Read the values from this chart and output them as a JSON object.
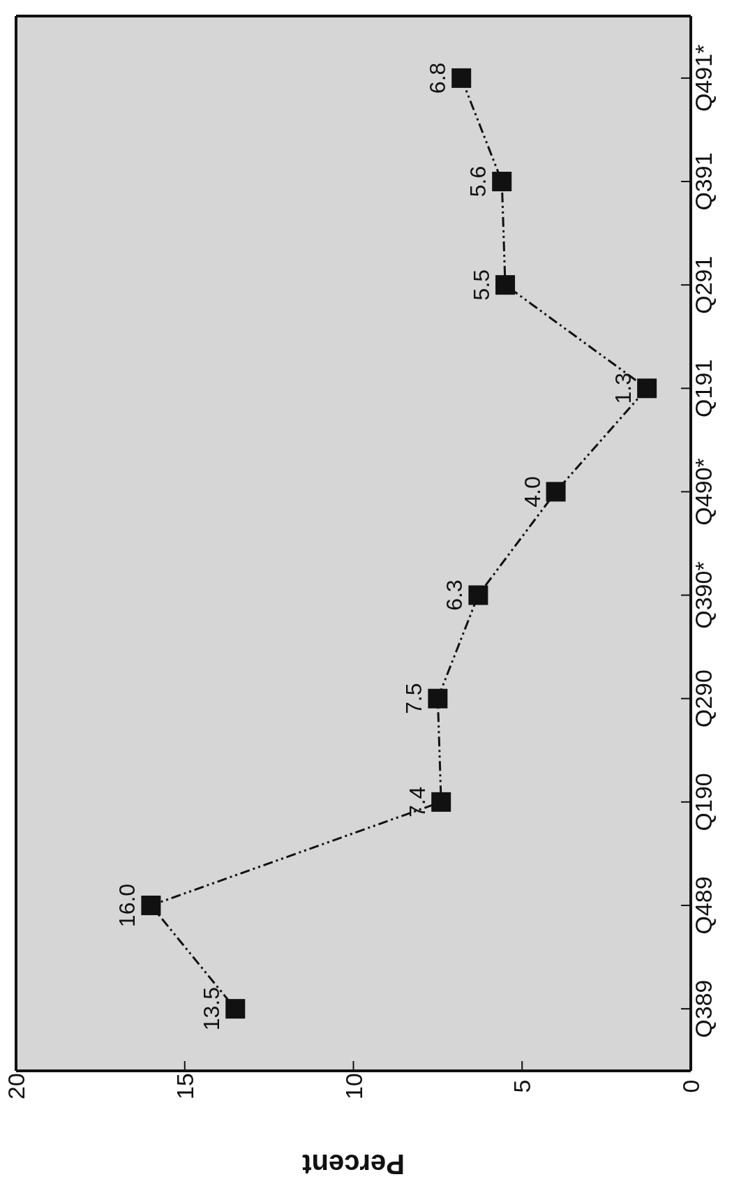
{
  "chart_data": {
    "type": "line",
    "orientation": "horizontal",
    "xlabel": "Percent",
    "categories": [
      "Q491*",
      "Q391",
      "Q291",
      "Q191",
      "Q490*",
      "Q390*",
      "Q290",
      "Q190",
      "Q489",
      "Q389"
    ],
    "series": [
      {
        "color": "#111111",
        "values": [
          6.8,
          5.6,
          5.5,
          1.3,
          4.0,
          6.3,
          7.5,
          7.4,
          16.0,
          13.5
        ],
        "value_labels": [
          "6.8",
          "5.6",
          "5.5",
          "1.3",
          "4.0",
          "6.3",
          "7.5",
          "7.4",
          "16.0",
          "13.5"
        ]
      }
    ],
    "xlim": [
      20,
      0
    ],
    "xticks": [
      0,
      5,
      10,
      15,
      20
    ],
    "grid": false,
    "legend": false,
    "marker": "square",
    "line_style": "dashed"
  }
}
